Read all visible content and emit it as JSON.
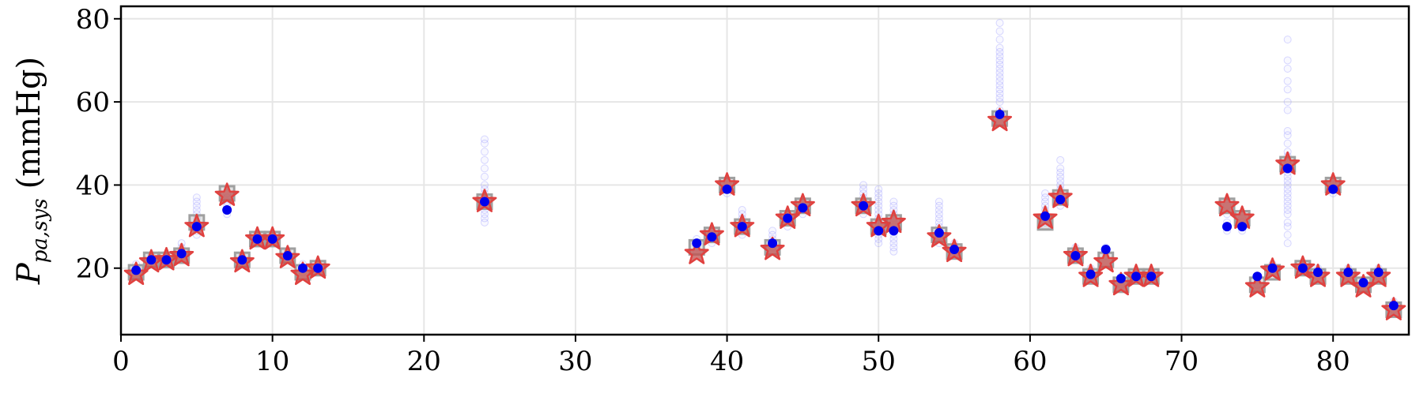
{
  "chart_data": {
    "type": "scatter",
    "title": "",
    "xlabel": "",
    "ylabel": {
      "main": "P",
      "subscript": "pa,sys",
      "unit": "(mmHg)"
    },
    "xlim": [
      0,
      85
    ],
    "ylim": [
      4,
      83
    ],
    "xticks": [
      0,
      10,
      20,
      30,
      40,
      50,
      60,
      70,
      80
    ],
    "yticks": [
      20,
      40,
      60,
      80
    ],
    "grid": true,
    "colors": {
      "star": "#e0413f",
      "star_fill": "#c0504d",
      "square": "#a0a0a0",
      "point": "#0000ee",
      "cloud": "#8080ff"
    },
    "series": [
      {
        "marker": "square",
        "values": [
          [
            1,
            19
          ],
          [
            2,
            22
          ],
          [
            3,
            22
          ],
          [
            4,
            23
          ],
          [
            5,
            31
          ],
          [
            7,
            38
          ],
          [
            8,
            22
          ],
          [
            9,
            27
          ],
          [
            10,
            27
          ],
          [
            11,
            23
          ],
          [
            12,
            19
          ],
          [
            13,
            20
          ],
          [
            24,
            36
          ],
          [
            38,
            25
          ],
          [
            39,
            28
          ],
          [
            40,
            40
          ],
          [
            41,
            30
          ],
          [
            43,
            25
          ],
          [
            44,
            32
          ],
          [
            45,
            35
          ],
          [
            49,
            35
          ],
          [
            50,
            30
          ],
          [
            51,
            31
          ],
          [
            54,
            28
          ],
          [
            55,
            24
          ],
          [
            58,
            56
          ],
          [
            61,
            31
          ],
          [
            62,
            37
          ],
          [
            63,
            23
          ],
          [
            64,
            18
          ],
          [
            65,
            22
          ],
          [
            66,
            16
          ],
          [
            67,
            18
          ],
          [
            68,
            18
          ],
          [
            73,
            35
          ],
          [
            74,
            32
          ],
          [
            75,
            16
          ],
          [
            76,
            19
          ],
          [
            77,
            45
          ],
          [
            78,
            20
          ],
          [
            79,
            18
          ],
          [
            80,
            40
          ],
          [
            81,
            18
          ],
          [
            82,
            16
          ],
          [
            83,
            18
          ],
          [
            84,
            10
          ]
        ]
      },
      {
        "marker": "star",
        "values": [
          [
            1,
            18.5
          ],
          [
            2,
            21.5
          ],
          [
            3,
            22
          ],
          [
            4,
            23
          ],
          [
            5,
            30
          ],
          [
            7,
            37.5
          ],
          [
            8,
            21.5
          ],
          [
            9,
            27
          ],
          [
            10,
            27
          ],
          [
            11,
            22.5
          ],
          [
            12,
            18.5
          ],
          [
            13,
            20
          ],
          [
            24,
            36
          ],
          [
            38,
            23.5
          ],
          [
            39,
            28
          ],
          [
            40,
            40
          ],
          [
            41,
            30
          ],
          [
            43,
            24.5
          ],
          [
            44,
            32
          ],
          [
            45,
            35
          ],
          [
            49,
            35
          ],
          [
            50,
            30
          ],
          [
            51,
            31
          ],
          [
            54,
            27.5
          ],
          [
            55,
            24
          ],
          [
            58,
            55.5
          ],
          [
            61,
            32
          ],
          [
            62,
            37
          ],
          [
            63,
            23
          ],
          [
            64,
            18
          ],
          [
            65,
            21.5
          ],
          [
            66,
            16
          ],
          [
            67,
            18
          ],
          [
            68,
            18
          ],
          [
            73,
            35
          ],
          [
            74,
            32
          ],
          [
            75,
            15.5
          ],
          [
            76,
            19.5
          ],
          [
            77,
            45
          ],
          [
            78,
            20
          ],
          [
            79,
            18
          ],
          [
            80,
            40
          ],
          [
            81,
            18
          ],
          [
            82,
            15.5
          ],
          [
            83,
            18
          ],
          [
            84,
            10
          ]
        ]
      },
      {
        "marker": "point",
        "values": [
          [
            1,
            19.5
          ],
          [
            2,
            22
          ],
          [
            3,
            22
          ],
          [
            4,
            23.5
          ],
          [
            5,
            30
          ],
          [
            7,
            34
          ],
          [
            8,
            22
          ],
          [
            9,
            27
          ],
          [
            10,
            27
          ],
          [
            11,
            23
          ],
          [
            12,
            20
          ],
          [
            13,
            20
          ],
          [
            24,
            36
          ],
          [
            38,
            26
          ],
          [
            39,
            27.5
          ],
          [
            40,
            39
          ],
          [
            41,
            30
          ],
          [
            43,
            26
          ],
          [
            44,
            32
          ],
          [
            45,
            34.5
          ],
          [
            49,
            35
          ],
          [
            50,
            29
          ],
          [
            51,
            29
          ],
          [
            54,
            28.5
          ],
          [
            55,
            24.5
          ],
          [
            58,
            57
          ],
          [
            61,
            32.5
          ],
          [
            62,
            36.5
          ],
          [
            63,
            23
          ],
          [
            64,
            18.5
          ],
          [
            65,
            24.5
          ],
          [
            66,
            17.5
          ],
          [
            67,
            18
          ],
          [
            68,
            18
          ],
          [
            73,
            30
          ],
          [
            74,
            30
          ],
          [
            75,
            18
          ],
          [
            76,
            20
          ],
          [
            77,
            44
          ],
          [
            78,
            20
          ],
          [
            79,
            19
          ],
          [
            80,
            39
          ],
          [
            81,
            19
          ],
          [
            82,
            16.5
          ],
          [
            83,
            19
          ],
          [
            84,
            11
          ]
        ]
      }
    ],
    "cloud": [
      [
        1,
        18
      ],
      [
        1,
        19
      ],
      [
        1,
        20
      ],
      [
        1,
        21
      ],
      [
        2,
        21
      ],
      [
        2,
        22
      ],
      [
        2,
        23
      ],
      [
        3,
        21
      ],
      [
        3,
        22
      ],
      [
        3,
        23
      ],
      [
        4,
        22
      ],
      [
        4,
        23
      ],
      [
        4,
        24
      ],
      [
        4,
        25
      ],
      [
        4,
        26
      ],
      [
        5,
        28
      ],
      [
        5,
        29
      ],
      [
        5,
        30
      ],
      [
        5,
        31
      ],
      [
        5,
        32
      ],
      [
        5,
        33
      ],
      [
        5,
        34
      ],
      [
        5,
        35
      ],
      [
        5,
        36
      ],
      [
        5,
        37
      ],
      [
        7,
        33
      ],
      [
        7,
        34
      ],
      [
        7,
        35
      ],
      [
        7,
        36
      ],
      [
        7,
        37
      ],
      [
        7,
        38
      ],
      [
        8,
        21
      ],
      [
        8,
        22
      ],
      [
        8,
        23
      ],
      [
        9,
        26
      ],
      [
        9,
        27
      ],
      [
        9,
        28
      ],
      [
        10,
        26
      ],
      [
        10,
        27
      ],
      [
        10,
        28
      ],
      [
        11,
        22
      ],
      [
        11,
        23
      ],
      [
        11,
        24
      ],
      [
        12,
        19
      ],
      [
        12,
        20
      ],
      [
        12,
        21
      ],
      [
        13,
        19
      ],
      [
        13,
        20
      ],
      [
        13,
        21
      ],
      [
        24,
        31
      ],
      [
        24,
        32
      ],
      [
        24,
        33
      ],
      [
        24,
        34
      ],
      [
        24,
        35
      ],
      [
        24,
        36
      ],
      [
        24,
        37
      ],
      [
        24,
        38
      ],
      [
        24,
        39
      ],
      [
        24,
        40
      ],
      [
        24,
        42
      ],
      [
        24,
        44
      ],
      [
        24,
        46
      ],
      [
        24,
        48
      ],
      [
        24,
        50
      ],
      [
        24,
        51
      ],
      [
        38,
        24
      ],
      [
        38,
        25
      ],
      [
        38,
        26
      ],
      [
        38,
        27
      ],
      [
        39,
        26
      ],
      [
        39,
        27
      ],
      [
        39,
        28
      ],
      [
        39,
        29
      ],
      [
        40,
        38
      ],
      [
        40,
        39
      ],
      [
        40,
        40
      ],
      [
        40,
        41
      ],
      [
        41,
        28
      ],
      [
        41,
        29
      ],
      [
        41,
        30
      ],
      [
        41,
        31
      ],
      [
        41,
        32
      ],
      [
        41,
        33
      ],
      [
        41,
        34
      ],
      [
        43,
        24
      ],
      [
        43,
        25
      ],
      [
        43,
        26
      ],
      [
        43,
        27
      ],
      [
        43,
        28
      ],
      [
        43,
        29
      ],
      [
        44,
        30
      ],
      [
        44,
        31
      ],
      [
        44,
        32
      ],
      [
        44,
        33
      ],
      [
        45,
        33
      ],
      [
        45,
        34
      ],
      [
        45,
        35
      ],
      [
        45,
        36
      ],
      [
        49,
        33
      ],
      [
        49,
        34
      ],
      [
        49,
        35
      ],
      [
        49,
        36
      ],
      [
        49,
        37
      ],
      [
        49,
        38
      ],
      [
        49,
        39
      ],
      [
        49,
        40
      ],
      [
        50,
        26
      ],
      [
        50,
        27
      ],
      [
        50,
        28
      ],
      [
        50,
        29
      ],
      [
        50,
        30
      ],
      [
        50,
        31
      ],
      [
        50,
        32
      ],
      [
        50,
        33
      ],
      [
        50,
        34
      ],
      [
        50,
        35
      ],
      [
        50,
        36
      ],
      [
        50,
        37
      ],
      [
        50,
        38
      ],
      [
        50,
        39
      ],
      [
        51,
        24
      ],
      [
        51,
        25
      ],
      [
        51,
        26
      ],
      [
        51,
        27
      ],
      [
        51,
        28
      ],
      [
        51,
        29
      ],
      [
        51,
        30
      ],
      [
        51,
        31
      ],
      [
        51,
        32
      ],
      [
        51,
        33
      ],
      [
        51,
        34
      ],
      [
        51,
        35
      ],
      [
        51,
        36
      ],
      [
        54,
        26
      ],
      [
        54,
        27
      ],
      [
        54,
        28
      ],
      [
        54,
        29
      ],
      [
        54,
        30
      ],
      [
        54,
        31
      ],
      [
        54,
        32
      ],
      [
        54,
        33
      ],
      [
        54,
        34
      ],
      [
        54,
        35
      ],
      [
        54,
        36
      ],
      [
        55,
        23
      ],
      [
        55,
        24
      ],
      [
        55,
        25
      ],
      [
        55,
        26
      ],
      [
        58,
        55
      ],
      [
        58,
        57
      ],
      [
        58,
        58
      ],
      [
        58,
        60
      ],
      [
        58,
        61
      ],
      [
        58,
        62
      ],
      [
        58,
        63
      ],
      [
        58,
        64
      ],
      [
        58,
        65
      ],
      [
        58,
        66
      ],
      [
        58,
        67
      ],
      [
        58,
        68
      ],
      [
        58,
        69
      ],
      [
        58,
        70
      ],
      [
        58,
        71
      ],
      [
        58,
        72
      ],
      [
        58,
        73
      ],
      [
        58,
        75
      ],
      [
        58,
        77
      ],
      [
        58,
        79
      ],
      [
        61,
        30
      ],
      [
        61,
        31
      ],
      [
        61,
        32
      ],
      [
        61,
        33
      ],
      [
        61,
        34
      ],
      [
        61,
        35
      ],
      [
        61,
        36
      ],
      [
        61,
        37
      ],
      [
        61,
        38
      ],
      [
        62,
        35
      ],
      [
        62,
        36
      ],
      [
        62,
        37
      ],
      [
        62,
        38
      ],
      [
        62,
        39
      ],
      [
        62,
        40
      ],
      [
        62,
        41
      ],
      [
        62,
        42
      ],
      [
        62,
        43
      ],
      [
        62,
        44
      ],
      [
        62,
        46
      ],
      [
        63,
        22
      ],
      [
        63,
        23
      ],
      [
        63,
        24
      ],
      [
        63,
        25
      ],
      [
        64,
        17
      ],
      [
        64,
        18
      ],
      [
        64,
        19
      ],
      [
        64,
        20
      ],
      [
        65,
        23
      ],
      [
        65,
        24
      ],
      [
        65,
        25
      ],
      [
        66,
        16
      ],
      [
        66,
        17
      ],
      [
        66,
        18
      ],
      [
        67,
        17
      ],
      [
        67,
        18
      ],
      [
        67,
        19
      ],
      [
        68,
        17
      ],
      [
        68,
        18
      ],
      [
        68,
        19
      ],
      [
        73,
        29
      ],
      [
        73,
        30
      ],
      [
        73,
        31
      ],
      [
        73,
        33
      ],
      [
        73,
        35
      ],
      [
        74,
        29
      ],
      [
        74,
        30
      ],
      [
        74,
        31
      ],
      [
        74,
        32
      ],
      [
        75,
        16
      ],
      [
        75,
        17
      ],
      [
        75,
        18
      ],
      [
        76,
        19
      ],
      [
        76,
        20
      ],
      [
        76,
        21
      ],
      [
        77,
        26
      ],
      [
        77,
        28
      ],
      [
        77,
        30
      ],
      [
        77,
        31
      ],
      [
        77,
        33
      ],
      [
        77,
        34
      ],
      [
        77,
        35
      ],
      [
        77,
        36
      ],
      [
        77,
        37
      ],
      [
        77,
        38
      ],
      [
        77,
        39
      ],
      [
        77,
        40
      ],
      [
        77,
        41
      ],
      [
        77,
        42
      ],
      [
        77,
        43
      ],
      [
        77,
        44
      ],
      [
        77,
        45
      ],
      [
        77,
        46
      ],
      [
        77,
        47
      ],
      [
        77,
        48
      ],
      [
        77,
        50
      ],
      [
        77,
        52
      ],
      [
        77,
        53
      ],
      [
        77,
        58
      ],
      [
        77,
        60
      ],
      [
        77,
        63
      ],
      [
        77,
        65
      ],
      [
        77,
        68
      ],
      [
        77,
        70
      ],
      [
        77,
        75
      ],
      [
        78,
        19
      ],
      [
        78,
        20
      ],
      [
        78,
        21
      ],
      [
        79,
        18
      ],
      [
        79,
        19
      ],
      [
        79,
        20
      ],
      [
        80,
        38
      ],
      [
        80,
        39
      ],
      [
        80,
        40
      ],
      [
        80,
        41
      ],
      [
        81,
        18
      ],
      [
        81,
        19
      ],
      [
        81,
        20
      ],
      [
        82,
        15
      ],
      [
        82,
        16
      ],
      [
        82,
        17
      ],
      [
        83,
        18
      ],
      [
        83,
        19
      ],
      [
        83,
        20
      ],
      [
        84,
        10
      ],
      [
        84,
        11
      ],
      [
        84,
        12
      ]
    ]
  }
}
